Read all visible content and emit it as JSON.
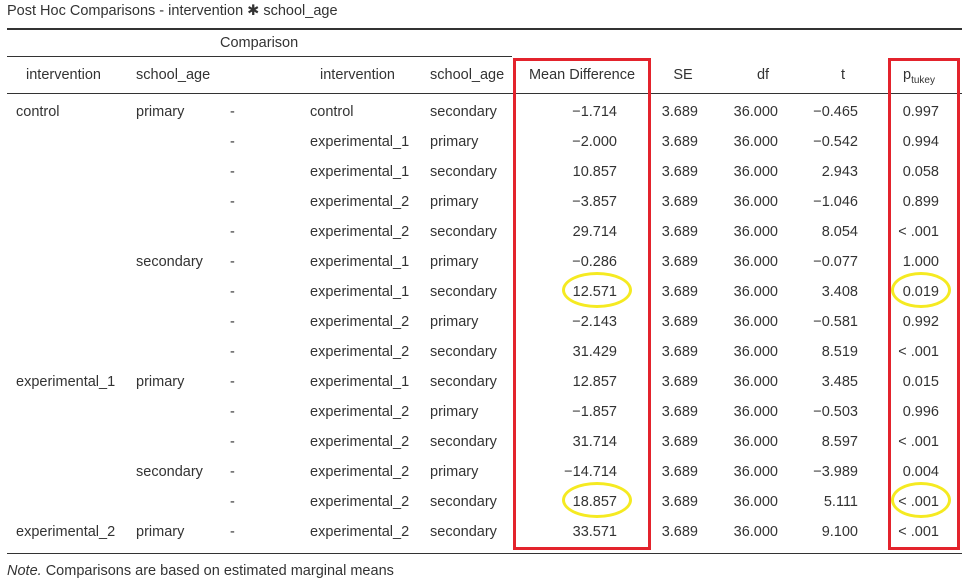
{
  "title": "Post Hoc Comparisons - intervention ✱ school_age",
  "group_header": "Comparison",
  "headers": {
    "intervention1": "intervention",
    "school_age1": "school_age",
    "intervention2": "intervention",
    "school_age2": "school_age",
    "mean_diff": "Mean Difference",
    "se": "SE",
    "df": "df",
    "t": "t",
    "p_main": "p",
    "p_sub": "tukey"
  },
  "rows": [
    {
      "iv1": "control",
      "sa1": "primary",
      "dash": "-",
      "iv2": "control",
      "sa2": "secondary",
      "md": "−1.714",
      "se": "3.689",
      "df": "36.000",
      "t": "−0.465",
      "p": "0.997"
    },
    {
      "iv1": "",
      "sa1": "",
      "dash": "-",
      "iv2": "experimental_1",
      "sa2": "primary",
      "md": "−2.000",
      "se": "3.689",
      "df": "36.000",
      "t": "−0.542",
      "p": "0.994"
    },
    {
      "iv1": "",
      "sa1": "",
      "dash": "-",
      "iv2": "experimental_1",
      "sa2": "secondary",
      "md": "10.857",
      "se": "3.689",
      "df": "36.000",
      "t": "2.943",
      "p": "0.058"
    },
    {
      "iv1": "",
      "sa1": "",
      "dash": "-",
      "iv2": "experimental_2",
      "sa2": "primary",
      "md": "−3.857",
      "se": "3.689",
      "df": "36.000",
      "t": "−1.046",
      "p": "0.899"
    },
    {
      "iv1": "",
      "sa1": "",
      "dash": "-",
      "iv2": "experimental_2",
      "sa2": "secondary",
      "md": "29.714",
      "se": "3.689",
      "df": "36.000",
      "t": "8.054",
      "p": "< .001"
    },
    {
      "iv1": "",
      "sa1": "secondary",
      "dash": "-",
      "iv2": "experimental_1",
      "sa2": "primary",
      "md": "−0.286",
      "se": "3.689",
      "df": "36.000",
      "t": "−0.077",
      "p": "1.000"
    },
    {
      "iv1": "",
      "sa1": "",
      "dash": "-",
      "iv2": "experimental_1",
      "sa2": "secondary",
      "md": "12.571",
      "se": "3.689",
      "df": "36.000",
      "t": "3.408",
      "p": "0.019"
    },
    {
      "iv1": "",
      "sa1": "",
      "dash": "-",
      "iv2": "experimental_2",
      "sa2": "primary",
      "md": "−2.143",
      "se": "3.689",
      "df": "36.000",
      "t": "−0.581",
      "p": "0.992"
    },
    {
      "iv1": "",
      "sa1": "",
      "dash": "-",
      "iv2": "experimental_2",
      "sa2": "secondary",
      "md": "31.429",
      "se": "3.689",
      "df": "36.000",
      "t": "8.519",
      "p": "< .001"
    },
    {
      "iv1": "experimental_1",
      "sa1": "primary",
      "dash": "-",
      "iv2": "experimental_1",
      "sa2": "secondary",
      "md": "12.857",
      "se": "3.689",
      "df": "36.000",
      "t": "3.485",
      "p": "0.015"
    },
    {
      "iv1": "",
      "sa1": "",
      "dash": "-",
      "iv2": "experimental_2",
      "sa2": "primary",
      "md": "−1.857",
      "se": "3.689",
      "df": "36.000",
      "t": "−0.503",
      "p": "0.996"
    },
    {
      "iv1": "",
      "sa1": "",
      "dash": "-",
      "iv2": "experimental_2",
      "sa2": "secondary",
      "md": "31.714",
      "se": "3.689",
      "df": "36.000",
      "t": "8.597",
      "p": "< .001"
    },
    {
      "iv1": "",
      "sa1": "secondary",
      "dash": "-",
      "iv2": "experimental_2",
      "sa2": "primary",
      "md": "−14.714",
      "se": "3.689",
      "df": "36.000",
      "t": "−3.989",
      "p": "0.004"
    },
    {
      "iv1": "",
      "sa1": "",
      "dash": "-",
      "iv2": "experimental_2",
      "sa2": "secondary",
      "md": "18.857",
      "se": "3.689",
      "df": "36.000",
      "t": "5.111",
      "p": "< .001"
    },
    {
      "iv1": "experimental_2",
      "sa1": "primary",
      "dash": "-",
      "iv2": "experimental_2",
      "sa2": "secondary",
      "md": "33.571",
      "se": "3.689",
      "df": "36.000",
      "t": "9.100",
      "p": "< .001"
    }
  ],
  "note_label": "Note.",
  "note_text": " Comparisons are based on estimated marginal means",
  "highlights": {
    "box_color": "#e3232c",
    "circle_color": "#f5ea21",
    "circled_rows": [
      6,
      13
    ]
  }
}
